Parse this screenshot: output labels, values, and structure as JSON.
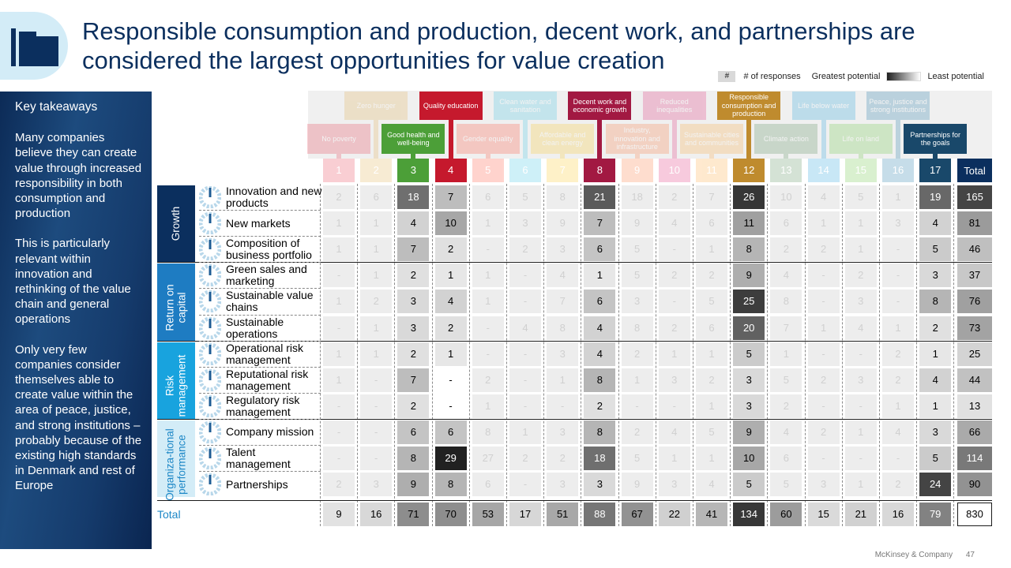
{
  "title": "Responsible consumption and production, decent work, and partnerships are considered the largest opportunities for value creation",
  "legend": {
    "hash": "#",
    "responses": "# of responses",
    "greatest": "Greatest potential",
    "least": "Least potential"
  },
  "takeaways": {
    "title": "Key takeaways",
    "paragraphs": [
      "Many companies believe they can create value through increased responsibility in both consumption and production",
      "This is particularly relevant within innovation and rethinking of the value chain and general operations",
      "Only very few companies consider themselves able to create value within the area of peace, justice, and strong institutions – probably because of the existing high standards in Denmark and rest of Europe"
    ]
  },
  "sdgs": [
    {
      "num": "1",
      "label": "No poverty",
      "color": "#e5243b",
      "active": false
    },
    {
      "num": "2",
      "label": "Zero hunger",
      "color": "#dda63a",
      "active": false
    },
    {
      "num": "3",
      "label": "Good health and well-being",
      "color": "#4c9f38",
      "active": true
    },
    {
      "num": "4",
      "label": "Quality education",
      "color": "#c5192d",
      "active": true
    },
    {
      "num": "5",
      "label": "Gender equality",
      "color": "#ff3a21",
      "active": false
    },
    {
      "num": "6",
      "label": "Clean water and sanitation",
      "color": "#26bde2",
      "active": false
    },
    {
      "num": "7",
      "label": "Affordable and clean energy",
      "color": "#fcc30b",
      "active": false
    },
    {
      "num": "8",
      "label": "Decent work and economic growth",
      "color": "#a21942",
      "active": true
    },
    {
      "num": "9",
      "label": "Industry, innovation and infrastructure",
      "color": "#fd6925",
      "active": false
    },
    {
      "num": "10",
      "label": "Reduced inequalities",
      "color": "#dd1367",
      "active": false
    },
    {
      "num": "11",
      "label": "Sustainable cities and communities",
      "color": "#fd9d24",
      "active": false
    },
    {
      "num": "12",
      "label": "Responsible consumption and production",
      "color": "#bf8b2e",
      "active": true
    },
    {
      "num": "13",
      "label": "Climate action",
      "color": "#3f7e44",
      "active": false
    },
    {
      "num": "14",
      "label": "Life below water",
      "color": "#0a97d9",
      "active": false
    },
    {
      "num": "15",
      "label": "Life on land",
      "color": "#56c02b",
      "active": false
    },
    {
      "num": "16",
      "label": "Peace, justice and strong institutions",
      "color": "#00689d",
      "active": false
    },
    {
      "num": "17",
      "label": "Partnerships for the goals",
      "color": "#19486a",
      "active": true
    }
  ],
  "total_header": "Total",
  "categories": [
    {
      "label": "Growth",
      "color": "#0b2f5e",
      "rows": 3
    },
    {
      "label": "Return on capital",
      "color": "#1e7cc2",
      "rows": 3
    },
    {
      "label": "Risk management",
      "color": "#18a3de",
      "rows": 3
    },
    {
      "label": "Organiza-tional performance",
      "color": "#d3ecf7",
      "rows": 3
    }
  ],
  "rows": [
    {
      "label": "Innovation and new products",
      "values": [
        "2",
        "6",
        "18",
        "7",
        "6",
        "5",
        "8",
        "21",
        "18",
        "2",
        "7",
        "26",
        "10",
        "4",
        "5",
        "1",
        "19"
      ],
      "total": "165"
    },
    {
      "label": "New markets",
      "values": [
        "1",
        "1",
        "4",
        "10",
        "1",
        "3",
        "9",
        "7",
        "9",
        "4",
        "6",
        "11",
        "6",
        "1",
        "1",
        "3",
        "4"
      ],
      "total": "81"
    },
    {
      "label": "Composition of business portfolio",
      "values": [
        "1",
        "1",
        "7",
        "2",
        "-",
        "2",
        "3",
        "6",
        "5",
        "-",
        "1",
        "8",
        "2",
        "2",
        "1",
        "-",
        "5"
      ],
      "total": "46"
    },
    {
      "label": "Green sales and marketing",
      "values": [
        "-",
        "1",
        "2",
        "1",
        "1",
        "-",
        "4",
        "1",
        "5",
        "2",
        "2",
        "9",
        "4",
        "-",
        "2",
        "-",
        "3"
      ],
      "total": "37"
    },
    {
      "label": "Sustainable value chains",
      "values": [
        "1",
        "2",
        "3",
        "4",
        "1",
        "-",
        "7",
        "6",
        "3",
        "-",
        "5",
        "25",
        "8",
        "-",
        "3",
        "-",
        "8"
      ],
      "total": "76"
    },
    {
      "label": "Sustainable operations",
      "values": [
        "-",
        "1",
        "3",
        "2",
        "-",
        "4",
        "8",
        "4",
        "8",
        "2",
        "6",
        "20",
        "7",
        "1",
        "4",
        "1",
        "2"
      ],
      "total": "73"
    },
    {
      "label": "Operational risk management",
      "values": [
        "1",
        "1",
        "2",
        "1",
        "-",
        "-",
        "3",
        "4",
        "2",
        "1",
        "1",
        "5",
        "1",
        "-",
        "-",
        "2",
        "1"
      ],
      "total": "25"
    },
    {
      "label": "Reputational risk management",
      "values": [
        "1",
        "-",
        "7",
        "-",
        "2",
        "-",
        "1",
        "8",
        "1",
        "3",
        "2",
        "3",
        "5",
        "2",
        "3",
        "2",
        "4"
      ],
      "total": "44"
    },
    {
      "label": "Regulatory risk management",
      "values": [
        "-",
        "-",
        "2",
        "-",
        "1",
        "-",
        "-",
        "2",
        "-",
        "-",
        "1",
        "3",
        "2",
        "-",
        "-",
        "1",
        "1"
      ],
      "total": "13"
    },
    {
      "label": "Company mission",
      "values": [
        "-",
        "-",
        "6",
        "6",
        "8",
        "1",
        "3",
        "8",
        "2",
        "4",
        "5",
        "9",
        "4",
        "2",
        "1",
        "4",
        "3"
      ],
      "total": "66"
    },
    {
      "label": "Talent management",
      "values": [
        "-",
        "-",
        "8",
        "29",
        "27",
        "2",
        "2",
        "18",
        "5",
        "1",
        "1",
        "10",
        "6",
        "-",
        "-",
        "-",
        "5"
      ],
      "total": "114"
    },
    {
      "label": "Partnerships",
      "values": [
        "2",
        "3",
        "9",
        "8",
        "6",
        "-",
        "3",
        "3",
        "9",
        "3",
        "4",
        "5",
        "5",
        "3",
        "1",
        "2",
        "24"
      ],
      "total": "90"
    }
  ],
  "totals_row": {
    "label": "Total",
    "values": [
      "9",
      "16",
      "71",
      "70",
      "53",
      "17",
      "51",
      "88",
      "67",
      "22",
      "41",
      "134",
      "60",
      "15",
      "21",
      "16",
      "79"
    ],
    "total": "830"
  },
  "footer": {
    "company": "McKinsey & Company",
    "page": "47"
  }
}
